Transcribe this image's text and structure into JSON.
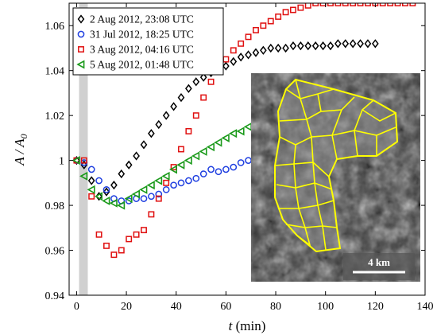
{
  "chart_data": {
    "type": "scatter",
    "xlabel_main": "t",
    "xlabel_unit": " (min)",
    "ylabel_main": "A / A",
    "ylabel_sub": "0",
    "xlim": [
      -3,
      140
    ],
    "ylim": [
      0.94,
      1.07
    ],
    "xticks": [
      0,
      20,
      40,
      60,
      80,
      100,
      120,
      140
    ],
    "yticks": [
      0.94,
      0.96,
      0.98,
      1.0,
      1.02,
      1.04,
      1.06
    ],
    "ytick_labels": [
      "0.94",
      "0.96",
      "0.98",
      "1",
      "1.02",
      "1.04",
      "1.06"
    ],
    "shaded_band_x": [
      1,
      4.5
    ],
    "legend_position": "top-left",
    "grid": false,
    "series": [
      {
        "name": "2 Aug 2012, 23:08 UTC",
        "marker": "diamond",
        "color": "#000000",
        "x": [
          0,
          3,
          6,
          9,
          12,
          15,
          18,
          21,
          24,
          27,
          30,
          33,
          36,
          39,
          42,
          45,
          48,
          51,
          54,
          57,
          60,
          63,
          66,
          69,
          72,
          75,
          78,
          81,
          84,
          87,
          90,
          93,
          96,
          99,
          102,
          105,
          108,
          111,
          114,
          117,
          120
        ],
        "y": [
          1.0,
          0.998,
          0.991,
          0.984,
          0.986,
          0.989,
          0.994,
          0.998,
          1.002,
          1.007,
          1.012,
          1.016,
          1.02,
          1.024,
          1.028,
          1.032,
          1.035,
          1.037,
          1.039,
          1.04,
          1.042,
          1.044,
          1.046,
          1.047,
          1.048,
          1.049,
          1.05,
          1.05,
          1.05,
          1.051,
          1.051,
          1.051,
          1.051,
          1.051,
          1.051,
          1.052,
          1.052,
          1.052,
          1.052,
          1.052,
          1.052
        ]
      },
      {
        "name": "31 Jul 2012, 18:25 UTC",
        "marker": "circle",
        "color": "#1f3fe0",
        "x": [
          0,
          3,
          6,
          9,
          12,
          15,
          18,
          21,
          24,
          27,
          30,
          33,
          36,
          39,
          42,
          45,
          48,
          51,
          54,
          57,
          60,
          63,
          66,
          69
        ],
        "y": [
          1.0,
          0.999,
          0.996,
          0.991,
          0.987,
          0.983,
          0.982,
          0.982,
          0.983,
          0.983,
          0.984,
          0.985,
          0.987,
          0.989,
          0.99,
          0.991,
          0.992,
          0.994,
          0.996,
          0.995,
          0.996,
          0.997,
          0.999,
          1.0
        ]
      },
      {
        "name": "3 Aug 2012, 04:16 UTC",
        "marker": "square",
        "color": "#e01010",
        "x": [
          0,
          3,
          6,
          9,
          12,
          15,
          18,
          21,
          24,
          27,
          30,
          33,
          36,
          39,
          42,
          45,
          48,
          51,
          54,
          57,
          60,
          63,
          66,
          69,
          72,
          75,
          78,
          81,
          84,
          87,
          90,
          93,
          96,
          99,
          102,
          105,
          108,
          111,
          114,
          117,
          120,
          123,
          126,
          129,
          132,
          135
        ],
        "y": [
          1.0,
          1.0,
          0.984,
          0.967,
          0.962,
          0.958,
          0.96,
          0.965,
          0.967,
          0.969,
          0.976,
          0.983,
          0.99,
          0.997,
          1.005,
          1.013,
          1.02,
          1.028,
          1.035,
          1.041,
          1.045,
          1.049,
          1.052,
          1.055,
          1.058,
          1.06,
          1.062,
          1.064,
          1.066,
          1.067,
          1.068,
          1.069,
          1.07,
          1.07,
          1.07,
          1.07,
          1.07,
          1.07,
          1.07,
          1.07,
          1.07,
          1.07,
          1.07,
          1.07,
          1.07,
          1.07
        ]
      },
      {
        "name": "5 Aug 2012, 01:48 UTC",
        "marker": "triangle-left",
        "color": "#1a9a1a",
        "x": [
          0,
          3,
          6,
          9,
          12,
          15,
          18,
          21,
          24,
          27,
          30,
          33,
          36,
          39,
          42,
          45,
          48,
          51,
          54,
          57,
          60,
          63,
          66,
          69,
          72,
          75,
          78,
          81,
          84,
          87,
          90,
          93,
          96,
          99,
          102,
          105,
          108,
          111,
          114,
          117,
          120,
          123,
          126,
          129,
          132,
          135
        ],
        "y": [
          1.0,
          0.993,
          0.987,
          0.984,
          0.982,
          0.981,
          0.98,
          0.983,
          0.985,
          0.987,
          0.989,
          0.991,
          0.993,
          0.996,
          0.998,
          1.0,
          1.002,
          1.004,
          1.006,
          1.008,
          1.01,
          1.012,
          1.013,
          1.015,
          1.016,
          1.017,
          1.018,
          1.019,
          1.02,
          1.021,
          1.022,
          1.023,
          1.024,
          1.025,
          1.026,
          1.027,
          1.028,
          1.029,
          1.03,
          1.031,
          1.032,
          1.033,
          1.034,
          1.035,
          1.036,
          1.036
        ]
      }
    ]
  },
  "inset": {
    "scale_label": "4 km",
    "boundary_color": "#ffff00"
  }
}
